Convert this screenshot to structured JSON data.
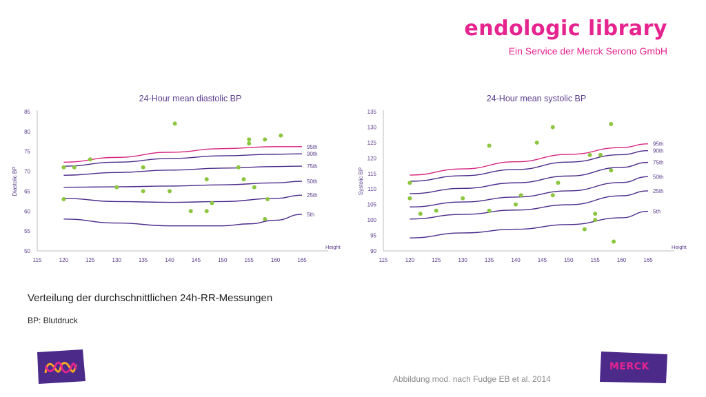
{
  "header": {
    "brand": "endologic library",
    "subtitle": "Ein Service der Merck Serono GmbH"
  },
  "caption": "Verteilung der durchschnittlichen 24h-RR-Messungen",
  "note": "BP: Blutdruck",
  "source": "Abbildung mod. nach Fudge EB et al. 2014",
  "logos": {
    "right_text": "MERCK"
  },
  "colors": {
    "brand": "#e6248f",
    "purple": "#4b2a8a",
    "pink_line": "#d6237f",
    "dot": "#8cc63f",
    "axis_text": "#5a3d8c"
  },
  "chart_data": [
    {
      "type": "scatter",
      "title": "24-Hour mean diastolic BP",
      "xlabel": "Height",
      "ylabel": "Diastolic BP",
      "xlim": [
        115,
        165
      ],
      "ylim": [
        50,
        85
      ],
      "xticks": [
        115,
        120,
        125,
        130,
        135,
        140,
        145,
        150,
        155,
        160,
        165
      ],
      "yticks": [
        50,
        55,
        60,
        65,
        70,
        75,
        80,
        85
      ],
      "points": [
        [
          120,
          71
        ],
        [
          120,
          63
        ],
        [
          122,
          71
        ],
        [
          125,
          73
        ],
        [
          130,
          66
        ],
        [
          135,
          71
        ],
        [
          135,
          65
        ],
        [
          140,
          65
        ],
        [
          141,
          82
        ],
        [
          144,
          60
        ],
        [
          147,
          68
        ],
        [
          147,
          60
        ],
        [
          148,
          62
        ],
        [
          153,
          71
        ],
        [
          154,
          68
        ],
        [
          155,
          78
        ],
        [
          155,
          77
        ],
        [
          156,
          66
        ],
        [
          158,
          78
        ],
        [
          158,
          58
        ],
        [
          158.5,
          63
        ],
        [
          161,
          79
        ]
      ],
      "percentile_curves": [
        {
          "name": "95th",
          "x": [
            120,
            130,
            140,
            150,
            160,
            165
          ],
          "y": [
            72.3,
            73.5,
            74.8,
            75.7,
            76.2,
            76.2
          ]
        },
        {
          "name": "90th",
          "x": [
            120,
            130,
            140,
            150,
            160,
            165
          ],
          "y": [
            71.3,
            72.3,
            73.2,
            73.9,
            74.3,
            74.4
          ]
        },
        {
          "name": "75th",
          "x": [
            120,
            130,
            140,
            150,
            160,
            165
          ],
          "y": [
            69,
            69.7,
            70.3,
            70.8,
            71.2,
            71.3
          ]
        },
        {
          "name": "50th",
          "x": [
            120,
            130,
            140,
            150,
            160,
            165
          ],
          "y": [
            66,
            66.1,
            66.3,
            66.6,
            67.1,
            67.5
          ]
        },
        {
          "name": "25th",
          "x": [
            120,
            130,
            140,
            150,
            160,
            165
          ],
          "y": [
            63.2,
            62.4,
            62.2,
            62.4,
            63.2,
            64
          ]
        },
        {
          "name": "5th",
          "x": [
            120,
            130,
            140,
            150,
            155,
            160,
            165
          ],
          "y": [
            58,
            57,
            56.3,
            56.3,
            56.8,
            57.7,
            59.2
          ]
        }
      ]
    },
    {
      "type": "scatter",
      "title": "24-Hour mean systolic BP",
      "xlabel": "Height",
      "ylabel": "Systolic BP",
      "xlim": [
        115,
        165
      ],
      "ylim": [
        90,
        135
      ],
      "xticks": [
        115,
        120,
        125,
        130,
        135,
        140,
        145,
        150,
        155,
        160,
        165
      ],
      "yticks": [
        90,
        95,
        100,
        105,
        110,
        115,
        120,
        125,
        130,
        135
      ],
      "points": [
        [
          120,
          112
        ],
        [
          120,
          107
        ],
        [
          122,
          102
        ],
        [
          125,
          103
        ],
        [
          130,
          107
        ],
        [
          135,
          124
        ],
        [
          135,
          103
        ],
        [
          140,
          105
        ],
        [
          141,
          108
        ],
        [
          144,
          125
        ],
        [
          147,
          130
        ],
        [
          147,
          108
        ],
        [
          148,
          112
        ],
        [
          153,
          97
        ],
        [
          154,
          121
        ],
        [
          155,
          102
        ],
        [
          155,
          100
        ],
        [
          156,
          121
        ],
        [
          158,
          131
        ],
        [
          158,
          116
        ],
        [
          158.5,
          93
        ]
      ],
      "percentile_curves": [
        {
          "name": "95th",
          "x": [
            120,
            130,
            140,
            150,
            160,
            165
          ],
          "y": [
            114.5,
            116.5,
            118.8,
            121.2,
            123.4,
            124.6
          ]
        },
        {
          "name": "90th",
          "x": [
            120,
            130,
            140,
            150,
            160,
            165
          ],
          "y": [
            112.5,
            114.3,
            116.3,
            118.7,
            121.1,
            122.4
          ]
        },
        {
          "name": "75th",
          "x": [
            120,
            130,
            140,
            150,
            160,
            165
          ],
          "y": [
            108.5,
            110.2,
            112,
            114.2,
            117,
            118.6
          ]
        },
        {
          "name": "50th",
          "x": [
            120,
            130,
            140,
            150,
            160,
            165
          ],
          "y": [
            104.2,
            105.8,
            107.4,
            109.4,
            112.1,
            114
          ]
        },
        {
          "name": "25th",
          "x": [
            120,
            130,
            140,
            150,
            160,
            165
          ],
          "y": [
            100.3,
            101.8,
            103.2,
            104.9,
            107.8,
            109.4
          ]
        },
        {
          "name": "5th",
          "x": [
            120,
            130,
            140,
            150,
            160,
            165
          ],
          "y": [
            94.2,
            95.8,
            97,
            98.5,
            100.7,
            102.8
          ]
        }
      ]
    }
  ]
}
